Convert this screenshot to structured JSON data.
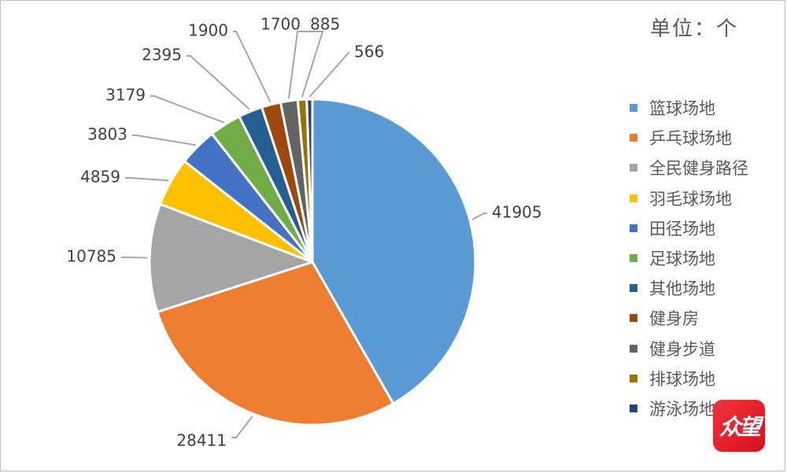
{
  "unit_label": "单位：个",
  "badge_text": "众望",
  "chart_data": {
    "type": "pie",
    "title": "",
    "legend_position": "right",
    "slices": [
      {
        "name": "篮球场地",
        "value": 41905,
        "color": "#5b9bd5"
      },
      {
        "name": "乒乓球场地",
        "value": 28411,
        "color": "#ed7d31"
      },
      {
        "name": "全民健身路径",
        "value": 10785,
        "color": "#a5a5a5"
      },
      {
        "name": "羽毛球场地",
        "value": 4859,
        "color": "#ffc000"
      },
      {
        "name": "田径场地",
        "value": 3803,
        "color": "#4472c4"
      },
      {
        "name": "足球场地",
        "value": 3179,
        "color": "#70ad47"
      },
      {
        "name": "其他场地",
        "value": 2395,
        "color": "#255e91"
      },
      {
        "name": "健身房",
        "value": 1900,
        "color": "#9e480e"
      },
      {
        "name": "健身步道",
        "value": 1700,
        "color": "#636363"
      },
      {
        "name": "排球场地",
        "value": 885,
        "color": "#997300"
      },
      {
        "name": "游泳场地",
        "value": 566,
        "color": "#264478"
      }
    ]
  }
}
